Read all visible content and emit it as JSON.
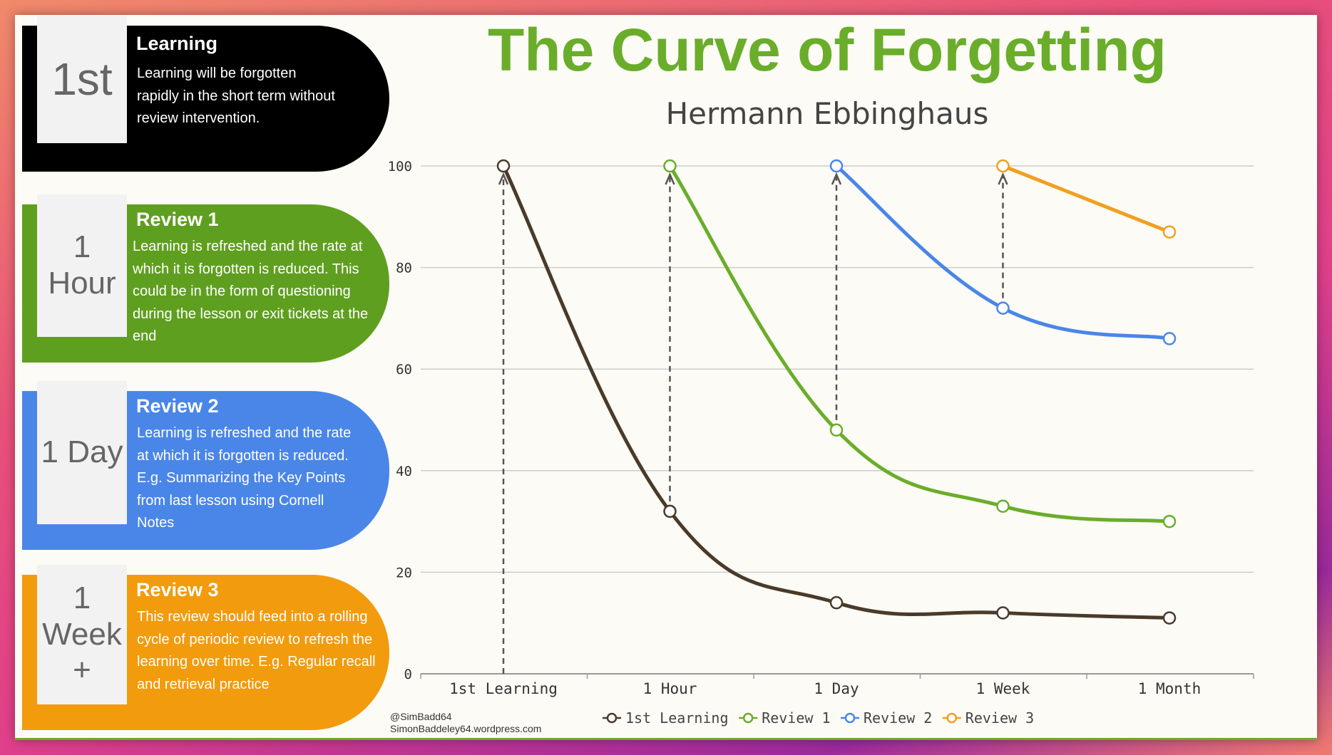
{
  "title": "The Curve of Forgetting",
  "subtitle": "Hermann Ebbinghaus",
  "panels": [
    {
      "badge": "1st",
      "title": "Learning",
      "text": "Learning will be forgotten rapidly in the short term without review intervention.",
      "color": "#000000"
    },
    {
      "badge": "1 Hour",
      "title": "Review 1",
      "text": "Learning is refreshed and the rate at which it is forgotten is reduced. This could be in the form of questioning during the lesson or exit tickets at the end",
      "color": "#5f9f1f"
    },
    {
      "badge": "1 Day",
      "title": "Review 2",
      "text": "Learning is refreshed and the rate at which it is forgotten is reduced.  E.g. Summarizing the Key Points from last lesson using Cornell Notes",
      "color": "#4a86e8"
    },
    {
      "badge": "1 Week +",
      "title": "Review 3",
      "text": "This review should feed into a rolling cycle of periodic review to refresh the learning over time.  E.g. Regular recall and retrieval practice",
      "color": "#f29b0c"
    }
  ],
  "credit": {
    "handle": "@SimBadd64",
    "site": "SimonBaddeley64.wordpress.com"
  },
  "chart_data": {
    "type": "line",
    "categories": [
      "1st Learning",
      "1 Hour",
      "1 Day",
      "1 Week",
      "1 Month"
    ],
    "ylim": [
      0,
      100
    ],
    "yticks": [
      0,
      20,
      40,
      60,
      80,
      100
    ],
    "grid": true,
    "legend": "bottom",
    "series": [
      {
        "name": "1st Learning",
        "color": "#4a3a2a",
        "values": [
          100,
          32,
          14,
          12,
          11
        ]
      },
      {
        "name": "Review 1",
        "color": "#6aad2a",
        "values": [
          null,
          100,
          48,
          33,
          30
        ]
      },
      {
        "name": "Review 2",
        "color": "#4a86e8",
        "values": [
          null,
          null,
          100,
          72,
          66
        ]
      },
      {
        "name": "Review 3",
        "color": "#f0a020",
        "values": [
          null,
          null,
          null,
          100,
          87
        ]
      }
    ]
  }
}
